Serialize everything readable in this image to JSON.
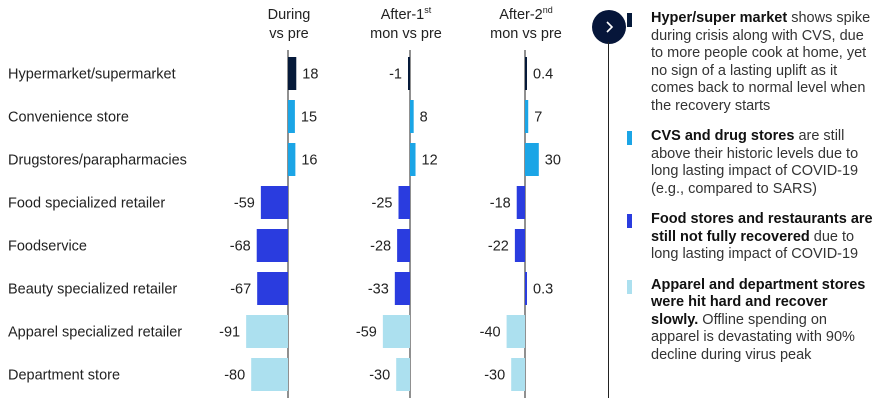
{
  "chart_data": {
    "type": "bar",
    "orientation": "horizontal",
    "categories": [
      "Hypermarket/supermarket",
      "Convenience store",
      "Drugstores/parapharmacies",
      "Food specialized retailer",
      "Foodservice",
      "Beauty specialized retailer",
      "Apparel specialized retailer",
      "Department store"
    ],
    "series": [
      {
        "name": "During vs pre",
        "header": {
          "pre": "During",
          "sup": "",
          "post": "vs pre"
        },
        "values": [
          18,
          15,
          16,
          -59,
          -68,
          -67,
          -91,
          -80
        ]
      },
      {
        "name": "After-1st mon vs pre",
        "header": {
          "pre": "After-1",
          "sup": "st",
          "post": "mon vs pre"
        },
        "values": [
          -1,
          8,
          12,
          -25,
          -28,
          -33,
          -59,
          -30
        ]
      },
      {
        "name": "After-2nd mon vs pre",
        "header": {
          "pre": "After-2",
          "sup": "nd",
          "post": "mon vs pre"
        },
        "values": [
          0.4,
          7,
          30,
          -18,
          -22,
          0.3,
          -40,
          -30
        ]
      }
    ],
    "category_groups": [
      "dark",
      "cyan",
      "cyan",
      "blue",
      "blue",
      "blue",
      "light",
      "light"
    ]
  },
  "colors": {
    "dark": "#061a3a",
    "cyan": "#1ba5e6",
    "blue": "#2a3cdf",
    "light": "#ace0ef",
    "axis": "#222222",
    "nav_button": "#06163a"
  },
  "nav": {
    "icon": "chevron-right-icon"
  },
  "notes": [
    {
      "group": "dark",
      "bold": "Hyper/super market",
      "rest": " shows spike during crisis along with CVS, due to more people cook at home, yet no sign of a lasting uplift as it comes back to normal level when the recovery starts"
    },
    {
      "group": "cyan",
      "bold": "CVS and drug stores",
      "rest": " are still above their historic levels due to long lasting impact of COVID-19 (e.g., compared to SARS)"
    },
    {
      "group": "blue",
      "bold": "Food stores and restaurants are still not fully recovered",
      "rest": " due to long lasting impact of COVID-19"
    },
    {
      "group": "light",
      "bold": "Apparel and department stores were hit hard and recover slowly.",
      "rest": " Offline spending on apparel is devastating with 90% decline during virus peak"
    }
  ]
}
